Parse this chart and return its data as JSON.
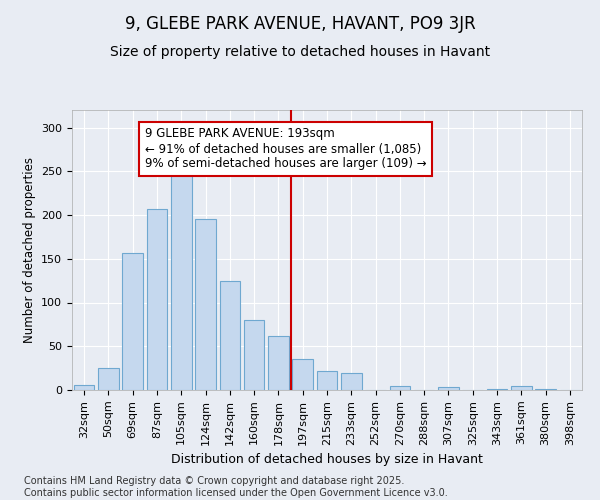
{
  "title": "9, GLEBE PARK AVENUE, HAVANT, PO9 3JR",
  "subtitle": "Size of property relative to detached houses in Havant",
  "xlabel": "Distribution of detached houses by size in Havant",
  "ylabel": "Number of detached properties",
  "categories": [
    "32sqm",
    "50sqm",
    "69sqm",
    "87sqm",
    "105sqm",
    "124sqm",
    "142sqm",
    "160sqm",
    "178sqm",
    "197sqm",
    "215sqm",
    "233sqm",
    "252sqm",
    "270sqm",
    "288sqm",
    "307sqm",
    "325sqm",
    "343sqm",
    "361sqm",
    "380sqm",
    "398sqm"
  ],
  "values": [
    6,
    25,
    157,
    207,
    252,
    196,
    125,
    80,
    62,
    35,
    22,
    20,
    0,
    5,
    0,
    4,
    0,
    1,
    5,
    1,
    0
  ],
  "bar_color": "#c5d8ee",
  "bar_edge_color": "#6fa8d0",
  "vline_color": "#cc0000",
  "annotation_text": "9 GLEBE PARK AVENUE: 193sqm\n← 91% of detached houses are smaller (1,085)\n9% of semi-detached houses are larger (109) →",
  "annotation_box_color": "#ffffff",
  "annotation_box_edge": "#cc0000",
  "ylim": [
    0,
    320
  ],
  "yticks": [
    0,
    50,
    100,
    150,
    200,
    250,
    300
  ],
  "background_color": "#e8ecf3",
  "grid_color": "#ffffff",
  "footer_text": "Contains HM Land Registry data © Crown copyright and database right 2025.\nContains public sector information licensed under the Open Government Licence v3.0.",
  "title_fontsize": 12,
  "subtitle_fontsize": 10,
  "xlabel_fontsize": 9,
  "ylabel_fontsize": 8.5,
  "tick_fontsize": 8,
  "annotation_fontsize": 8.5,
  "footer_fontsize": 7
}
